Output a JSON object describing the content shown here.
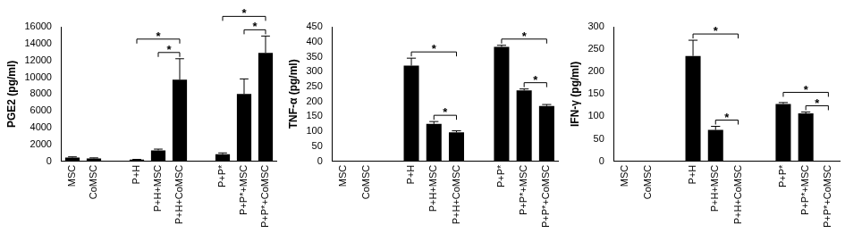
{
  "chart_data": [
    {
      "type": "bar",
      "y_label": "PGE2 (pg/ml)",
      "categories": [
        "MSC",
        "CoMSC",
        null,
        "P+H",
        "P+H+MSC",
        "P+H+CoMSC",
        null,
        "P+P*",
        "P+P*+MSC",
        "P+P*+CoMSC"
      ],
      "values": [
        450,
        350,
        null,
        200,
        1300,
        9700,
        null,
        850,
        8000,
        12900
      ],
      "errors": [
        80,
        60,
        null,
        30,
        150,
        2500,
        null,
        150,
        1800,
        2000
      ],
      "color": "#000000",
      "grid": false,
      "ylim": [
        0,
        16000
      ],
      "yticks": [
        0,
        2000,
        4000,
        6000,
        8000,
        10000,
        12000,
        14000,
        16000
      ],
      "brackets": [
        {
          "from": 4,
          "to": 5,
          "label": "*"
        },
        {
          "from": 3,
          "to": 5,
          "label": "*"
        },
        {
          "from": 8,
          "to": 9,
          "label": "*"
        },
        {
          "from": 7,
          "to": 9,
          "label": "*"
        }
      ]
    },
    {
      "type": "bar",
      "y_label": "TNF-α (pg/ml)",
      "categories": [
        "MSC",
        "CoMSC",
        null,
        "P+H",
        "P+H+MSC",
        "P+H+CoMSC",
        null,
        "P+P*",
        "P+P*+MSC",
        "P+P*+CoMSC"
      ],
      "values": [
        0,
        0,
        null,
        320,
        125,
        97,
        null,
        383,
        237,
        185
      ],
      "errors": [
        null,
        null,
        null,
        25,
        8,
        5,
        null,
        5,
        5,
        5
      ],
      "color": "#000000",
      "grid": false,
      "ylim": [
        0,
        450
      ],
      "yticks": [
        0,
        50,
        100,
        150,
        200,
        250,
        300,
        350,
        400,
        450
      ],
      "brackets": [
        {
          "from": 4,
          "to": 5,
          "label": "*"
        },
        {
          "from": 3,
          "to": 5,
          "label": "*"
        },
        {
          "from": 8,
          "to": 9,
          "label": "*"
        },
        {
          "from": 7,
          "to": 9,
          "label": "*"
        }
      ]
    },
    {
      "type": "bar",
      "y_label": "IFN-γ (pg/ml)",
      "categories": [
        "MSC",
        "CoMSC",
        null,
        "P+H",
        "P+H+MSC",
        "P+H+CoMSC",
        null,
        "P+P*",
        "P+P*+MSC",
        "P+P*+CoMSC"
      ],
      "values": [
        0,
        0,
        null,
        235,
        70,
        0,
        null,
        128,
        107,
        0
      ],
      "errors": [
        null,
        null,
        null,
        35,
        8,
        null,
        null,
        3,
        3,
        null
      ],
      "color": "#000000",
      "grid": false,
      "ylim": [
        0,
        300
      ],
      "yticks": [
        0,
        50,
        100,
        150,
        200,
        250,
        300
      ],
      "brackets": [
        {
          "from": 4,
          "to": 5,
          "label": "*"
        },
        {
          "from": 3,
          "to": 5,
          "label": "*"
        },
        {
          "from": 8,
          "to": 9,
          "label": "*"
        },
        {
          "from": 7,
          "to": 9,
          "label": "*"
        }
      ]
    }
  ]
}
